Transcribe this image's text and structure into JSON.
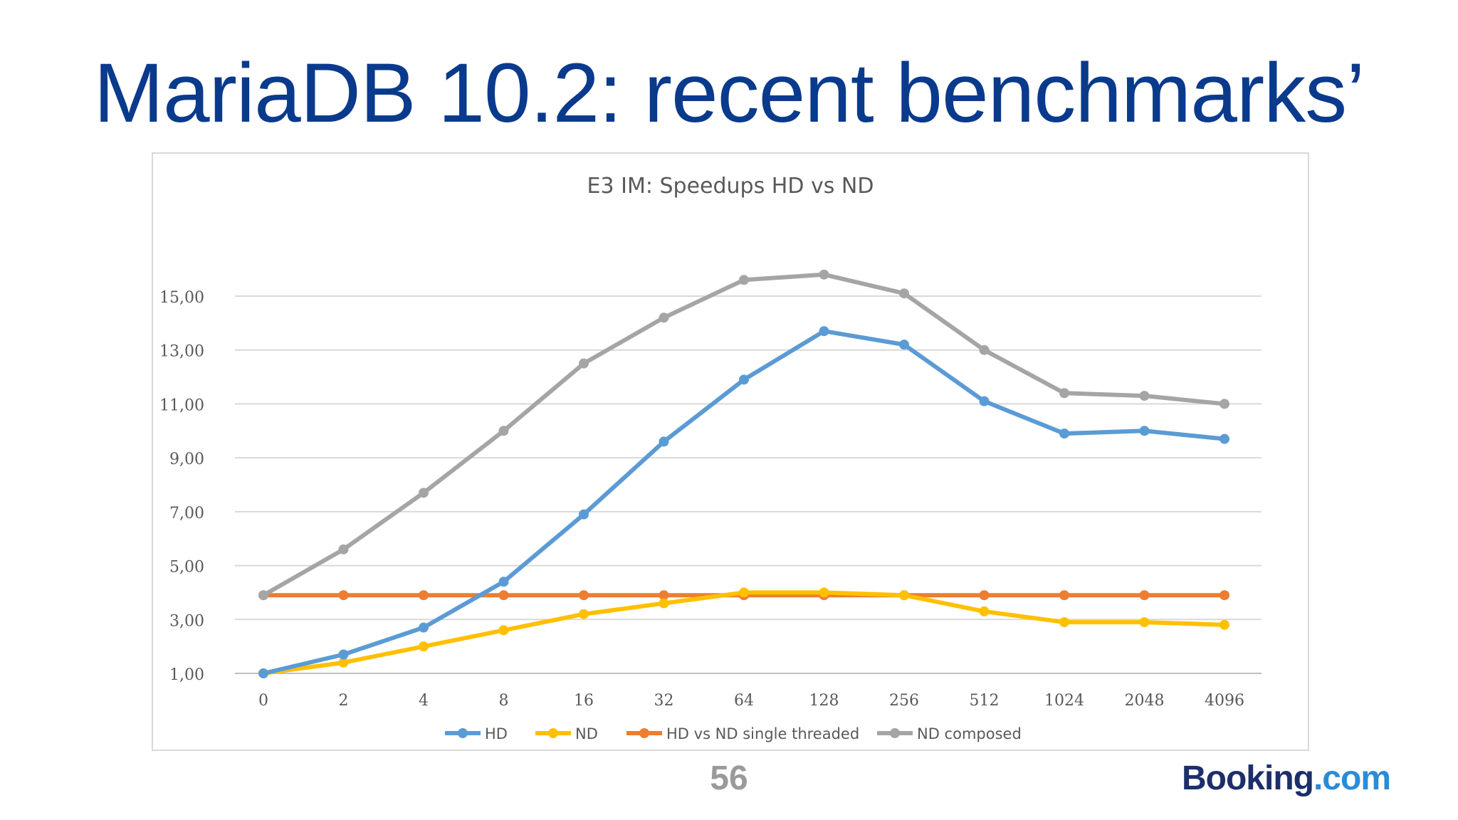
{
  "slide": {
    "title": "MariaDB 10.2: recent benchmarks’",
    "page_number": "56",
    "logo": {
      "part1": "Booking",
      "part2": ".com"
    }
  },
  "chart_data": {
    "type": "line",
    "title": "E3 IM: Speedups  HD vs ND",
    "xlabel": "",
    "ylabel": "",
    "categories": [
      "0",
      "2",
      "4",
      "8",
      "16",
      "32",
      "64",
      "128",
      "256",
      "512",
      "1024",
      "2048",
      "4096"
    ],
    "y_ticks": [
      "1,00",
      "3,00",
      "5,00",
      "7,00",
      "9,00",
      "11,00",
      "13,00",
      "15,00"
    ],
    "ylim": [
      1,
      15
    ],
    "grid": true,
    "legend_position": "bottom",
    "series": [
      {
        "name": "HD",
        "color": "#5b9bd5",
        "values": [
          1.0,
          1.7,
          2.7,
          4.4,
          6.9,
          9.6,
          11.9,
          13.7,
          13.2,
          11.1,
          9.9,
          10.0,
          9.7
        ]
      },
      {
        "name": "ND",
        "color": "#ffc000",
        "values": [
          1.0,
          1.4,
          2.0,
          2.6,
          3.2,
          3.6,
          4.0,
          4.0,
          3.9,
          3.3,
          2.9,
          2.9,
          2.8
        ]
      },
      {
        "name": "HD vs ND single threaded",
        "color": "#ed7d31",
        "values": [
          3.9,
          3.9,
          3.9,
          3.9,
          3.9,
          3.9,
          3.9,
          3.9,
          3.9,
          3.9,
          3.9,
          3.9,
          3.9
        ]
      },
      {
        "name": "ND composed",
        "color": "#a5a5a5",
        "values": [
          3.9,
          5.6,
          7.7,
          10.0,
          12.5,
          14.2,
          15.6,
          15.8,
          15.1,
          13.0,
          11.4,
          11.3,
          11.0
        ]
      }
    ]
  }
}
